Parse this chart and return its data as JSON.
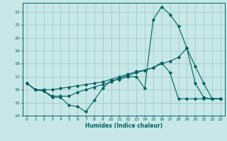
{
  "xlabel": "Humidex (Indice chaleur)",
  "xlim": [
    -0.5,
    23.5
  ],
  "ylim": [
    14,
    22.7
  ],
  "yticks": [
    14,
    15,
    16,
    17,
    18,
    19,
    20,
    21,
    22
  ],
  "xticks": [
    0,
    1,
    2,
    3,
    4,
    5,
    6,
    7,
    8,
    9,
    10,
    11,
    12,
    13,
    14,
    15,
    16,
    17,
    18,
    19,
    20,
    21,
    22,
    23
  ],
  "background_color": "#c8e8e8",
  "grid_color": "#a0c8c8",
  "line_color": "#006060",
  "line1_x": [
    0,
    1,
    2,
    3,
    4,
    5,
    6,
    7,
    8,
    9,
    10,
    11,
    12,
    13,
    14,
    15,
    16,
    17,
    18,
    19,
    20,
    21,
    22,
    23
  ],
  "line1_y": [
    16.5,
    16.0,
    15.9,
    15.4,
    15.4,
    14.8,
    14.7,
    14.3,
    15.2,
    16.1,
    16.7,
    16.8,
    17.0,
    17.0,
    16.1,
    21.4,
    22.4,
    21.8,
    20.9,
    19.2,
    16.5,
    15.4,
    15.3,
    15.3
  ],
  "line2_x": [
    0,
    1,
    2,
    3,
    4,
    5,
    6,
    7,
    8,
    9,
    10,
    11,
    12,
    13,
    14,
    15,
    16,
    17,
    18,
    19,
    20,
    21,
    22,
    23
  ],
  "line2_y": [
    16.5,
    16.0,
    15.9,
    15.5,
    15.5,
    15.5,
    15.8,
    16.0,
    16.2,
    16.4,
    16.6,
    16.9,
    17.1,
    17.3,
    17.5,
    17.7,
    18.1,
    17.3,
    15.3,
    15.3,
    15.3,
    15.3,
    15.3,
    15.3
  ],
  "line3_x": [
    0,
    1,
    2,
    3,
    4,
    5,
    6,
    7,
    8,
    9,
    10,
    11,
    12,
    13,
    14,
    15,
    16,
    17,
    18,
    19,
    20,
    21,
    22,
    23
  ],
  "line3_y": [
    16.5,
    16.0,
    16.0,
    16.0,
    16.1,
    16.2,
    16.3,
    16.4,
    16.5,
    16.6,
    16.8,
    17.0,
    17.2,
    17.4,
    17.5,
    17.7,
    18.0,
    18.2,
    18.5,
    19.2,
    17.8,
    16.5,
    15.3,
    15.3
  ]
}
